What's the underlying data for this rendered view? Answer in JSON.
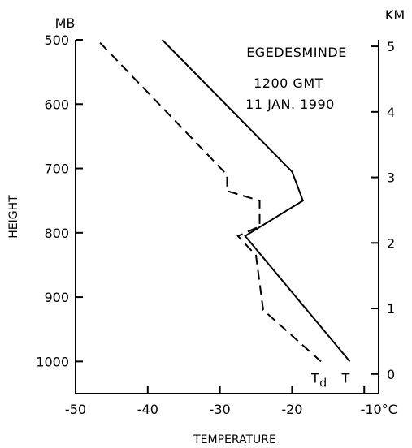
{
  "chart_data": {
    "type": "line",
    "title": "",
    "annotations": [
      "EGEDESMINDE",
      "1200 GMT",
      "11 JAN. 1990"
    ],
    "xlabel": "TEMPERATURE",
    "ylabel": "HEIGHT",
    "left_unit": "MB",
    "right_unit": "KM",
    "xlim": [
      -50,
      -8
    ],
    "ylim_mb": [
      1050,
      500
    ],
    "ylim_km": [
      -0.3,
      5.1
    ],
    "x_ticks": [
      {
        "value": -50,
        "label": "-50"
      },
      {
        "value": -40,
        "label": "-40"
      },
      {
        "value": -30,
        "label": "-30"
      },
      {
        "value": -20,
        "label": "-20"
      },
      {
        "value": -10,
        "label": "-10°C"
      }
    ],
    "y_ticks_mb": [
      {
        "value": 500,
        "label": "500"
      },
      {
        "value": 600,
        "label": "600"
      },
      {
        "value": 700,
        "label": "700"
      },
      {
        "value": 800,
        "label": "800"
      },
      {
        "value": 900,
        "label": "900"
      },
      {
        "value": 1000,
        "label": "1000"
      }
    ],
    "y_ticks_km": [
      {
        "value": 0,
        "label": "0"
      },
      {
        "value": 1,
        "label": "1"
      },
      {
        "value": 2,
        "label": "2"
      },
      {
        "value": 3,
        "label": "3"
      },
      {
        "value": 4,
        "label": "4"
      },
      {
        "value": 5,
        "label": "5"
      }
    ],
    "series": [
      {
        "name": "T",
        "style": "solid",
        "points": [
          {
            "temp": -12,
            "mb": 1000
          },
          {
            "temp": -26.5,
            "mb": 805
          },
          {
            "temp": -18.5,
            "mb": 750
          },
          {
            "temp": -20,
            "mb": 705
          },
          {
            "temp": -38,
            "mb": 500
          }
        ]
      },
      {
        "name": "Td",
        "style": "dashed",
        "points": [
          {
            "temp": -16,
            "mb": 1000
          },
          {
            "temp": -24,
            "mb": 920
          },
          {
            "temp": -25,
            "mb": 835
          },
          {
            "temp": -27.5,
            "mb": 805
          },
          {
            "temp": -24.5,
            "mb": 790
          },
          {
            "temp": -24.5,
            "mb": 750
          },
          {
            "temp": -29,
            "mb": 735
          },
          {
            "temp": -29,
            "mb": 710
          },
          {
            "temp": -47,
            "mb": 500
          }
        ]
      }
    ]
  }
}
